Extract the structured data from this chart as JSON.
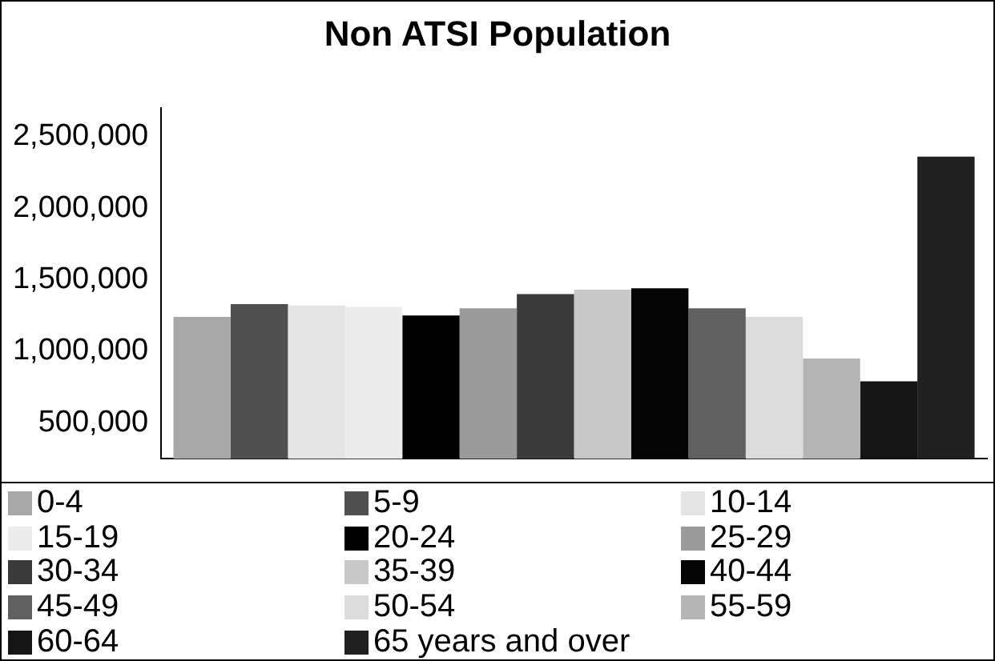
{
  "chart_data": {
    "type": "bar",
    "title": "Non ATSI Population",
    "categories": [
      null
    ],
    "series": [
      {
        "name": "0-4",
        "color": "#a8a8a8",
        "values": [
          1240000
        ]
      },
      {
        "name": "5-9",
        "color": "#505050",
        "values": [
          1330000
        ]
      },
      {
        "name": "10-14",
        "color": "#e4e4e4",
        "values": [
          1320000
        ]
      },
      {
        "name": "15-19",
        "color": "#ececec",
        "values": [
          1310000
        ]
      },
      {
        "name": "20-24",
        "color": "#000000",
        "values": [
          1250000
        ]
      },
      {
        "name": "25-29",
        "color": "#9a9a9a",
        "values": [
          1300000
        ]
      },
      {
        "name": "30-34",
        "color": "#3a3a3a",
        "values": [
          1400000
        ]
      },
      {
        "name": "35-39",
        "color": "#c8c8c8",
        "values": [
          1430000
        ]
      },
      {
        "name": "40-44",
        "color": "#050505",
        "values": [
          1440000
        ]
      },
      {
        "name": "45-49",
        "color": "#606060",
        "values": [
          1300000
        ]
      },
      {
        "name": "50-54",
        "color": "#dcdcdc",
        "values": [
          1240000
        ]
      },
      {
        "name": "55-59",
        "color": "#b4b4b4",
        "values": [
          950000
        ]
      },
      {
        "name": "60-64",
        "color": "#151515",
        "values": [
          790000
        ]
      },
      {
        "name": "65 years and over",
        "color": "#202020",
        "values": [
          2360000
        ]
      }
    ],
    "ylim": [
      250000,
      2700000
    ],
    "yticks": [
      {
        "value": 500000,
        "label": "500,000"
      },
      {
        "value": 1000000,
        "label": "1,000,000"
      },
      {
        "value": 1500000,
        "label": "1,500,000"
      },
      {
        "value": 2000000,
        "label": "2,000,000"
      },
      {
        "value": 2500000,
        "label": "2,500,000"
      }
    ],
    "grid": false,
    "legend": "bottom",
    "tick_labels": "y"
  }
}
